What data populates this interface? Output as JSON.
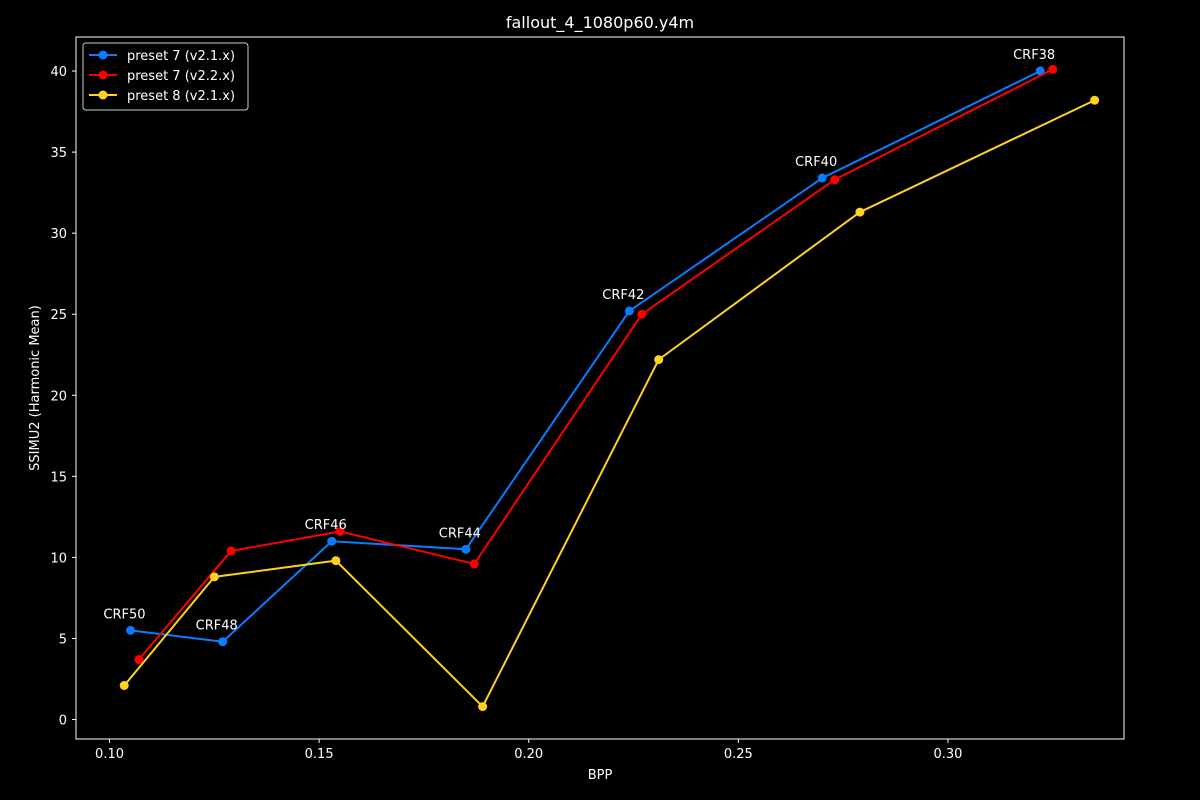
{
  "chart_data": {
    "type": "line",
    "title": "fallout_4_1080p60.y4m",
    "xlabel": "BPP",
    "ylabel": "SSIMU2 (Harmonic Mean)",
    "xlim": [
      0.092,
      0.342
    ],
    "ylim": [
      -1.2,
      42.1
    ],
    "xticks": [
      {
        "value": 0.1,
        "label": "0.10"
      },
      {
        "value": 0.15,
        "label": "0.15"
      },
      {
        "value": 0.2,
        "label": "0.20"
      },
      {
        "value": 0.25,
        "label": "0.25"
      },
      {
        "value": 0.3,
        "label": "0.30"
      }
    ],
    "yticks": [
      {
        "value": 0,
        "label": "0"
      },
      {
        "value": 5,
        "label": "5"
      },
      {
        "value": 10,
        "label": "10"
      },
      {
        "value": 15,
        "label": "15"
      },
      {
        "value": 20,
        "label": "20"
      },
      {
        "value": 25,
        "label": "25"
      },
      {
        "value": 30,
        "label": "30"
      },
      {
        "value": 35,
        "label": "35"
      },
      {
        "value": 40,
        "label": "40"
      }
    ],
    "grid": false,
    "legend_position": "top-left",
    "series": [
      {
        "name": "preset 7 (v2.1.x)",
        "color": "#0a7cff",
        "points": [
          {
            "x": 0.105,
            "y": 5.5
          },
          {
            "x": 0.127,
            "y": 4.8
          },
          {
            "x": 0.153,
            "y": 11.0
          },
          {
            "x": 0.185,
            "y": 10.5
          },
          {
            "x": 0.224,
            "y": 25.2
          },
          {
            "x": 0.27,
            "y": 33.4
          },
          {
            "x": 0.322,
            "y": 40.0
          }
        ]
      },
      {
        "name": "preset 7 (v2.2.x)",
        "color": "#ff0000",
        "points": [
          {
            "x": 0.107,
            "y": 3.7
          },
          {
            "x": 0.129,
            "y": 10.4
          },
          {
            "x": 0.155,
            "y": 11.6
          },
          {
            "x": 0.187,
            "y": 9.6
          },
          {
            "x": 0.227,
            "y": 25.0
          },
          {
            "x": 0.273,
            "y": 33.3
          },
          {
            "x": 0.325,
            "y": 40.1
          }
        ]
      },
      {
        "name": "preset 8 (v2.1.x)",
        "color": "#ffd21f",
        "points": [
          {
            "x": 0.1035,
            "y": 2.1
          },
          {
            "x": 0.125,
            "y": 8.8
          },
          {
            "x": 0.154,
            "y": 9.8
          },
          {
            "x": 0.189,
            "y": 0.8
          },
          {
            "x": 0.231,
            "y": 22.2
          },
          {
            "x": 0.279,
            "y": 31.3
          },
          {
            "x": 0.335,
            "y": 38.2
          }
        ]
      }
    ],
    "annotations": [
      {
        "text": "CRF50",
        "x": 0.105,
        "y": 5.5
      },
      {
        "text": "CRF48",
        "x": 0.127,
        "y": 4.8
      },
      {
        "text": "CRF46",
        "x": 0.153,
        "y": 11.0
      },
      {
        "text": "CRF44",
        "x": 0.185,
        "y": 10.5
      },
      {
        "text": "CRF42",
        "x": 0.224,
        "y": 25.2
      },
      {
        "text": "CRF40",
        "x": 0.27,
        "y": 33.4
      },
      {
        "text": "CRF38",
        "x": 0.322,
        "y": 40.0
      }
    ]
  }
}
